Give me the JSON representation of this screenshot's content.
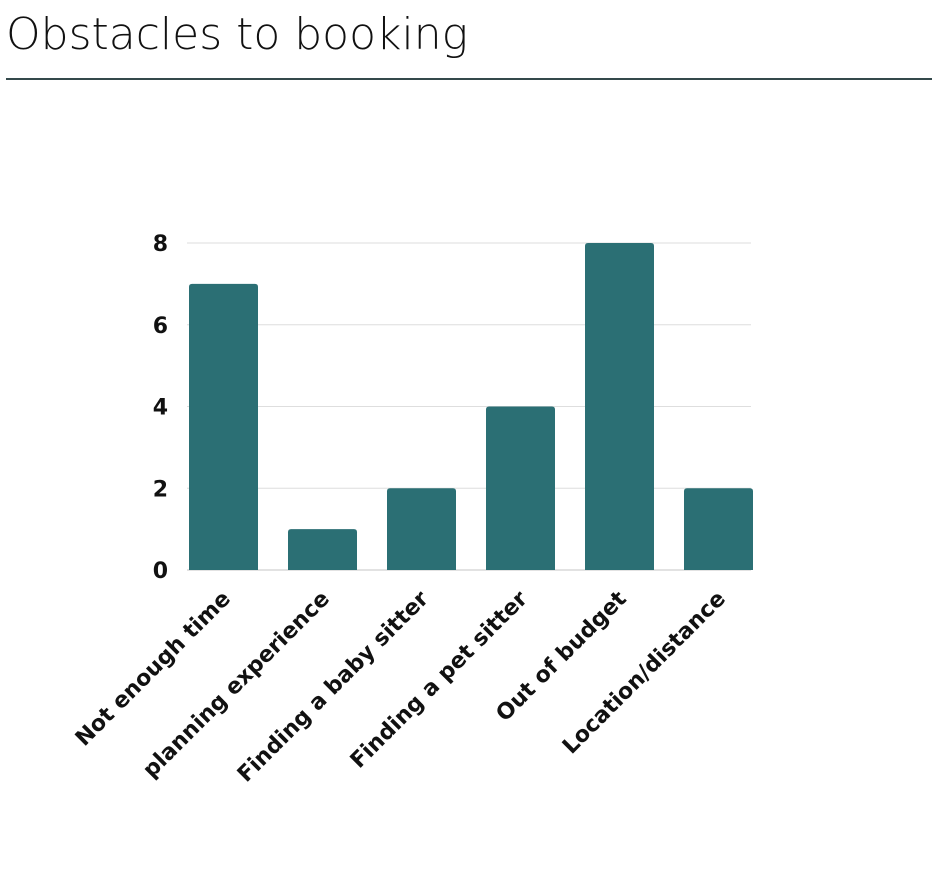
{
  "page": {
    "title": "Obstacles to booking"
  },
  "colors": {
    "bar": "#2b6f74",
    "grid": "#dedede",
    "baseline": "#c4c4c4",
    "rule": "#34494b",
    "text": "#111111"
  },
  "chart_data": {
    "type": "bar",
    "title": "",
    "xlabel": "",
    "ylabel": "",
    "categories": [
      "Not enough time",
      "planning experience",
      "Finding a baby sitter",
      "Finding a pet sitter",
      "Out of budget",
      "Location/distance"
    ],
    "values": [
      7,
      1,
      2,
      4,
      8,
      2
    ],
    "ylim": [
      0,
      8
    ],
    "yticks": [
      0,
      2,
      4,
      6,
      8
    ],
    "grid": true,
    "legend": "none"
  }
}
